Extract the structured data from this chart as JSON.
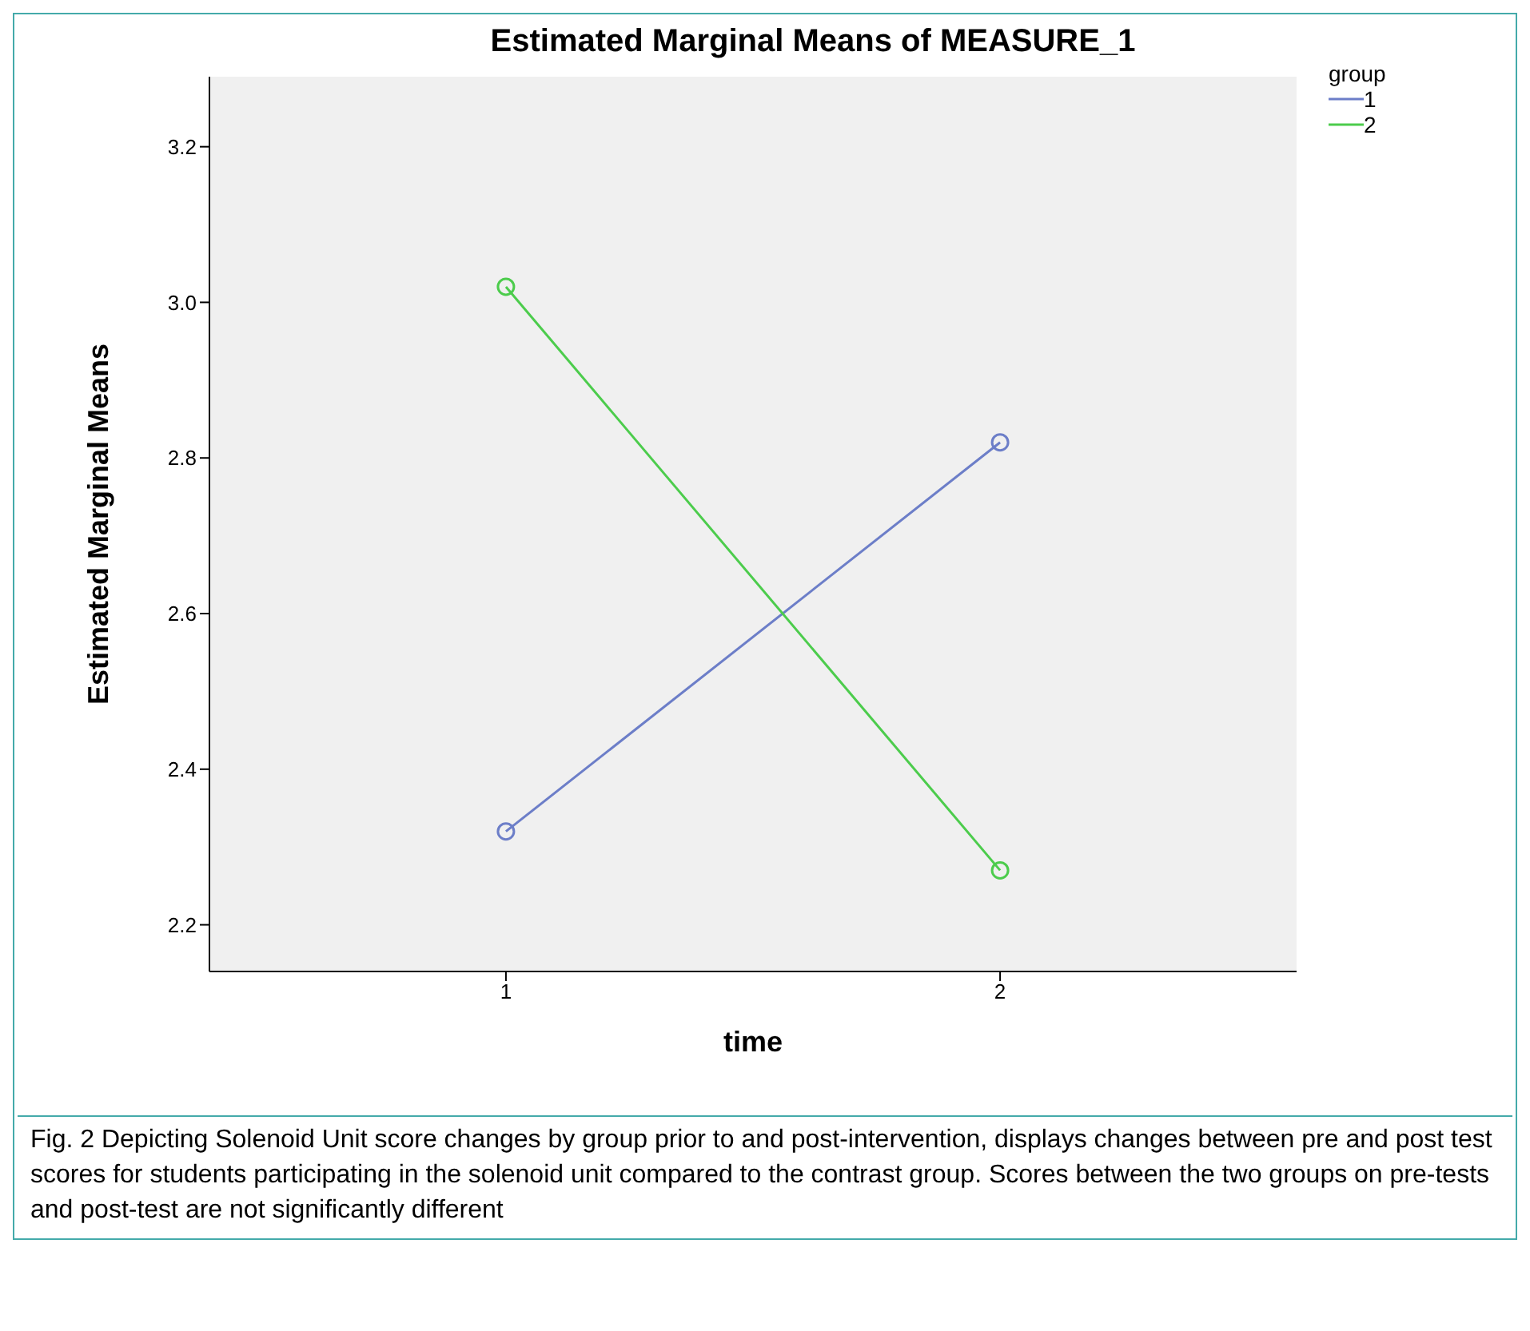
{
  "chart_data": {
    "type": "line",
    "title": "Estimated Marginal Means of MEASURE_1",
    "xlabel": "time",
    "ylabel": "Estimated Marginal Means",
    "legend_title": "group",
    "x": [
      1,
      2
    ],
    "xlim": [
      0.4,
      2.6
    ],
    "xticks": [
      1,
      2
    ],
    "ylim": [
      2.14,
      3.29
    ],
    "yticks": [
      2.2,
      2.4,
      2.6,
      2.8,
      {
        "value": 3,
        "label": "3.0"
      },
      3.2
    ],
    "series": [
      {
        "name": "1",
        "color": "#6c7ec8",
        "values": [
          2.32,
          2.82
        ]
      },
      {
        "name": "2",
        "color": "#4ccc4c",
        "values": [
          3.02,
          2.27
        ]
      }
    ],
    "marker": "circle",
    "legend": "top right",
    "annotations": [
      "Fig. 2 Depicting Solenoid Unit score changes by group prior to and post-intervention, displays changes between pre and post test scores for students participating in the solenoid unit compared to the contrast group. Scores between the two groups on pre-tests and post-test are not significantly different"
    ]
  }
}
